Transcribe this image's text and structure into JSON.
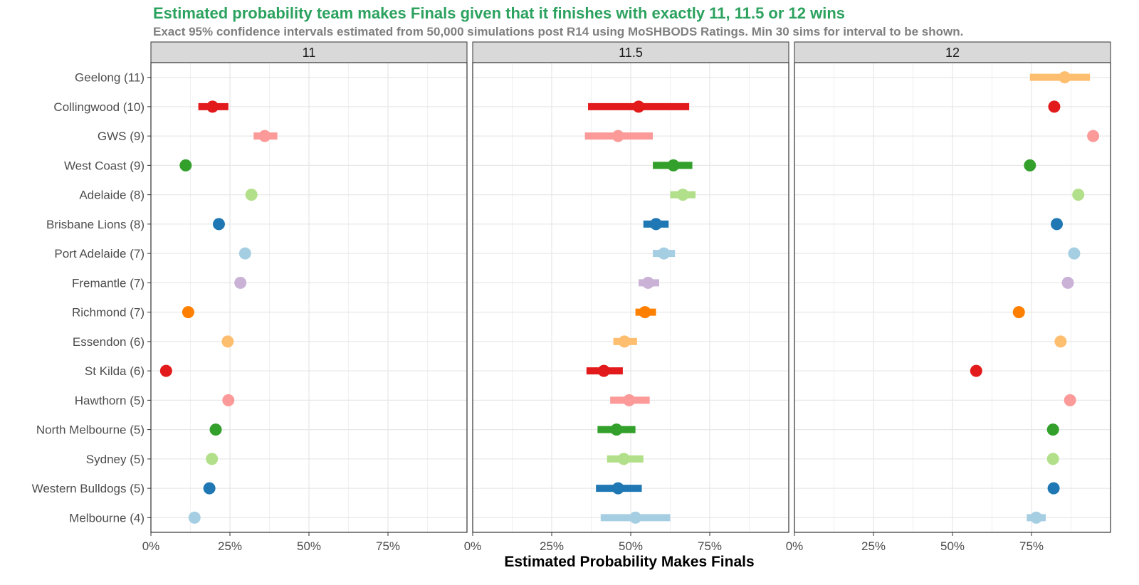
{
  "chart_data": {
    "type": "dot-interval",
    "title": "Estimated probability team makes Finals given that it finishes with exactly 11, 11.5 or 12 wins",
    "subtitle": "Exact 95% confidence intervals estimated from 50,000 simulations post R14 using MoSHBODS Ratings. Min 30 sims for interval to be shown.",
    "xlabel": "Estimated Probability Makes Finals",
    "xlim": [
      0,
      1
    ],
    "x_ticks": [
      0,
      0.25,
      0.5,
      0.75
    ],
    "x_tick_labels": [
      "0%",
      "25%",
      "50%",
      "75%"
    ],
    "panels": [
      "11",
      "11.5",
      "12"
    ],
    "teams": [
      {
        "label": "Geelong (11)",
        "color": "#FDBF6F",
        "values": [
          null,
          null,
          {
            "p": 0.855,
            "lo": 0.745,
            "hi": 0.935
          }
        ]
      },
      {
        "label": "Collingwood (10)",
        "color": "#E31A1C",
        "values": [
          {
            "p": 0.195,
            "lo": 0.15,
            "hi": 0.245
          },
          {
            "p": 0.525,
            "lo": 0.365,
            "hi": 0.685
          },
          {
            "p": 0.822,
            "lo": null,
            "hi": null
          }
        ]
      },
      {
        "label": "GWS (9)",
        "color": "#FB9A99",
        "values": [
          {
            "p": 0.36,
            "lo": 0.325,
            "hi": 0.4
          },
          {
            "p": 0.46,
            "lo": 0.355,
            "hi": 0.57
          },
          {
            "p": 0.945,
            "lo": null,
            "hi": null
          }
        ]
      },
      {
        "label": "West Coast (9)",
        "color": "#33A02C",
        "values": [
          {
            "p": 0.11,
            "lo": null,
            "hi": null
          },
          {
            "p": 0.635,
            "lo": 0.57,
            "hi": 0.695
          },
          {
            "p": 0.745,
            "lo": null,
            "hi": null
          }
        ]
      },
      {
        "label": "Adelaide (8)",
        "color": "#B2DF8A",
        "values": [
          {
            "p": 0.318,
            "lo": null,
            "hi": null
          },
          {
            "p": 0.665,
            "lo": 0.625,
            "hi": 0.705
          },
          {
            "p": 0.898,
            "lo": null,
            "hi": null
          }
        ]
      },
      {
        "label": "Brisbane Lions (8)",
        "color": "#1F78B4",
        "values": [
          {
            "p": 0.215,
            "lo": null,
            "hi": null
          },
          {
            "p": 0.58,
            "lo": 0.54,
            "hi": 0.62
          },
          {
            "p": 0.83,
            "lo": null,
            "hi": null
          }
        ]
      },
      {
        "label": "Port Adelaide (7)",
        "color": "#A6CEE3",
        "values": [
          {
            "p": 0.298,
            "lo": null,
            "hi": null
          },
          {
            "p": 0.605,
            "lo": 0.57,
            "hi": 0.64
          },
          {
            "p": 0.885,
            "lo": null,
            "hi": null
          }
        ]
      },
      {
        "label": "Fremantle (7)",
        "color": "#CAB2D6",
        "values": [
          {
            "p": 0.283,
            "lo": null,
            "hi": null
          },
          {
            "p": 0.555,
            "lo": 0.525,
            "hi": 0.59
          },
          {
            "p": 0.865,
            "lo": null,
            "hi": null
          }
        ]
      },
      {
        "label": "Richmond (7)",
        "color": "#FF7F00",
        "values": [
          {
            "p": 0.118,
            "lo": null,
            "hi": null
          },
          {
            "p": 0.545,
            "lo": 0.515,
            "hi": 0.58
          },
          {
            "p": 0.71,
            "lo": null,
            "hi": null
          }
        ]
      },
      {
        "label": "Essendon (6)",
        "color": "#FDBF6F",
        "values": [
          {
            "p": 0.243,
            "lo": null,
            "hi": null
          },
          {
            "p": 0.48,
            "lo": 0.445,
            "hi": 0.52
          },
          {
            "p": 0.842,
            "lo": null,
            "hi": null
          }
        ]
      },
      {
        "label": "St Kilda (6)",
        "color": "#E31A1C",
        "values": [
          {
            "p": 0.048,
            "lo": null,
            "hi": null
          },
          {
            "p": 0.415,
            "lo": 0.36,
            "hi": 0.475
          },
          {
            "p": 0.575,
            "lo": null,
            "hi": null
          }
        ]
      },
      {
        "label": "Hawthorn (5)",
        "color": "#FB9A99",
        "values": [
          {
            "p": 0.245,
            "lo": null,
            "hi": null
          },
          {
            "p": 0.495,
            "lo": 0.435,
            "hi": 0.56
          },
          {
            "p": 0.872,
            "lo": null,
            "hi": null
          }
        ]
      },
      {
        "label": "North Melbourne (5)",
        "color": "#33A02C",
        "values": [
          {
            "p": 0.205,
            "lo": null,
            "hi": null
          },
          {
            "p": 0.455,
            "lo": 0.395,
            "hi": 0.515
          },
          {
            "p": 0.818,
            "lo": null,
            "hi": null
          }
        ]
      },
      {
        "label": "Sydney (5)",
        "color": "#B2DF8A",
        "values": [
          {
            "p": 0.193,
            "lo": null,
            "hi": null
          },
          {
            "p": 0.478,
            "lo": 0.425,
            "hi": 0.54
          },
          {
            "p": 0.818,
            "lo": null,
            "hi": null
          }
        ]
      },
      {
        "label": "Western Bulldogs (5)",
        "color": "#1F78B4",
        "values": [
          {
            "p": 0.185,
            "lo": null,
            "hi": null
          },
          {
            "p": 0.46,
            "lo": 0.39,
            "hi": 0.535
          },
          {
            "p": 0.82,
            "lo": null,
            "hi": null
          }
        ]
      },
      {
        "label": "Melbourne (4)",
        "color": "#A6CEE3",
        "values": [
          {
            "p": 0.138,
            "lo": null,
            "hi": null
          },
          {
            "p": 0.515,
            "lo": 0.405,
            "hi": 0.625
          },
          {
            "p": 0.765,
            "lo": 0.735,
            "hi": 0.795
          }
        ]
      }
    ]
  }
}
